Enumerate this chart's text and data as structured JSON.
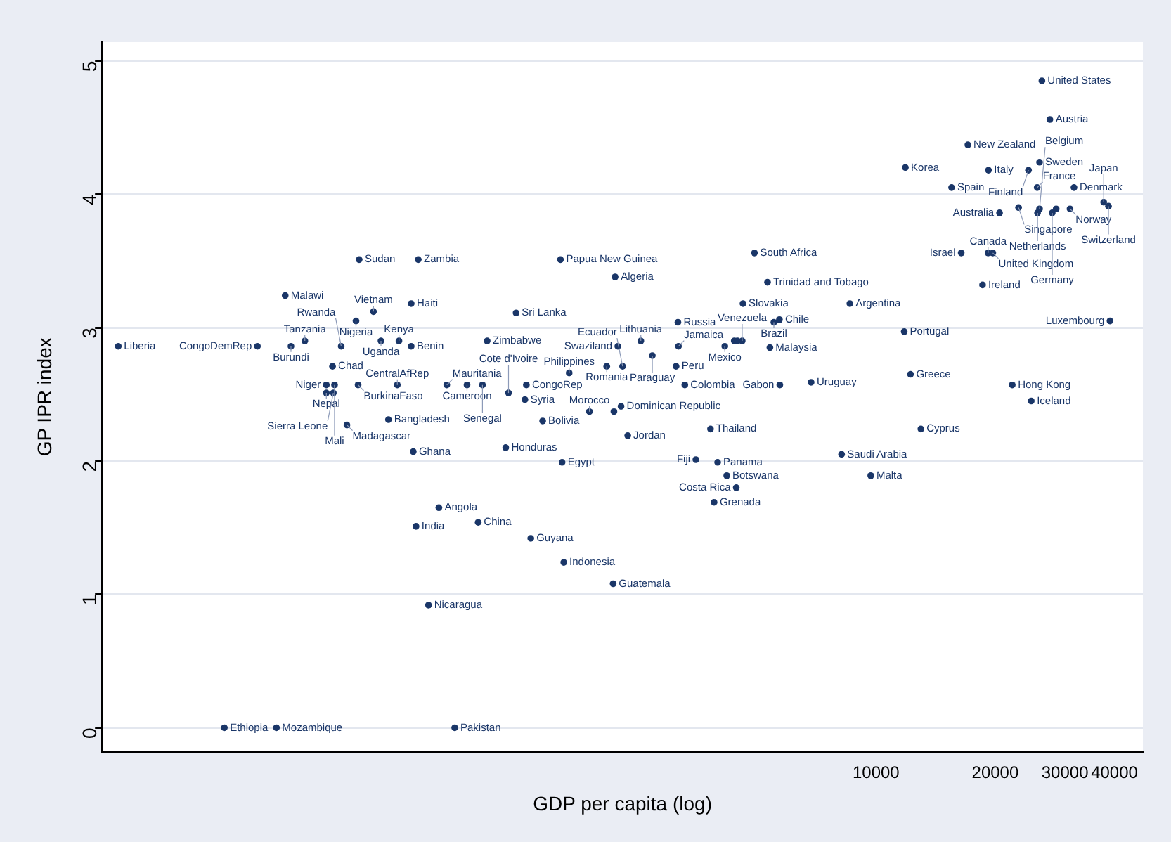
{
  "chart_data": {
    "type": "scatter",
    "xlabel": "GDP per capita (log)",
    "ylabel": "GP IPR index",
    "log": "x",
    "grid": "y",
    "marker": "circle",
    "legend": false,
    "color": "#1a3668",
    "xlim": [
      111,
      47200
    ],
    "xticks": [
      10000,
      20000,
      30000,
      40000
    ],
    "ylim": [
      -0.18,
      5.14
    ],
    "yticks": [
      0,
      1,
      2,
      3,
      4,
      5
    ],
    "x": [
      122,
      226,
      274,
      306,
      322,
      333,
      361,
      409,
      409,
      424,
      426,
      429,
      446,
      461,
      486,
      492,
      495,
      538,
      562,
      587,
      618,
      624,
      670,
      670,
      678,
      689,
      698,
      741,
      787,
      824,
      863,
      927,
      989,
      1014,
      1042,
      1161,
      1180,
      1233,
      1298,
      1309,
      1343,
      1439,
      1596,
      1611,
      1627,
      1679,
      1889,
      2089,
      2168,
      2178,
      2193,
      2228,
      2270,
      2291,
      2360,
      2547,
      2723,
      3126,
      3160,
      3170,
      3289,
      3508,
      3819,
      3899,
      3981,
      4150,
      4198,
      4436,
      4592,
      4613,
      4932,
      5321,
      5395,
      5521,
      5702,
      5715,
      6855,
      8185,
      8590,
      9700,
      11780,
      11860,
      12220,
      12980,
      15520,
      16410,
      17060,
      18580,
      19190,
      19230,
      19720,
      20510,
      22080,
      22910,
      24270,
      24660,
      25530,
      25580,
      25880,
      25880,
      26240,
      27480,
      27860,
      28510,
      30900,
      31620,
      37580,
      38640,
      38990,
      4385,
      4467
    ],
    "values": [
      2.86,
      0,
      2.86,
      0,
      3.24,
      2.86,
      2.9,
      2.57,
      2.51,
      2.71,
      2.51,
      2.57,
      2.86,
      2.27,
      3.05,
      2.57,
      3.51,
      3.12,
      2.9,
      2.31,
      2.57,
      2.9,
      3.18,
      2.86,
      2.07,
      1.51,
      3.51,
      0.92,
      1.65,
      2.57,
      0,
      2.57,
      1.54,
      2.57,
      2.9,
      2.1,
      2.51,
      3.11,
      2.46,
      2.57,
      1.42,
      2.3,
      3.51,
      1.99,
      1.24,
      2.66,
      2.37,
      2.71,
      1.08,
      2.37,
      3.38,
      2.86,
      2.41,
      2.71,
      2.19,
      2.9,
      2.79,
      2.71,
      3.04,
      2.86,
      2.57,
      2.01,
      2.24,
      1.69,
      1.99,
      2.86,
      1.89,
      1.8,
      2.9,
      3.18,
      3.56,
      3.34,
      2.85,
      3.04,
      3.06,
      2.57,
      2.59,
      2.05,
      3.18,
      1.89,
      2.97,
      4.2,
      2.65,
      2.24,
      4.05,
      3.56,
      4.37,
      3.32,
      3.56,
      4.18,
      3.56,
      3.86,
      2.57,
      3.9,
      4.18,
      2.45,
      4.05,
      3.86,
      4.24,
      3.89,
      4.85,
      4.56,
      3.86,
      3.89,
      3.89,
      4.05,
      3.94,
      3.91,
      3.05,
      2.9,
      2.9
    ],
    "value_labels": [
      "Liberia",
      "Ethiopia",
      "CongoDemRep",
      "Mozambique",
      "Malawi",
      "Burundi",
      "Tanzania",
      "Niger",
      "Nepal",
      "Chad",
      "Sierra Leone",
      "Mali",
      "Rwanda",
      "Madagascar",
      "Nigeria",
      "BurkinaFaso",
      "Sudan",
      "Vietnam",
      "Uganda",
      "Bangladesh",
      "CentralAfRep",
      "Kenya",
      "Haiti",
      "Benin",
      "Ghana",
      "India",
      "Zambia",
      "Nicaragua",
      "Angola",
      "Mauritania",
      "Pakistan",
      "Cameroon",
      "China",
      "Senegal",
      "Zimbabwe",
      "Honduras",
      "Cote d'Ivoire",
      "Sri Lanka",
      "Syria",
      "CongoRep",
      "Guyana",
      "Bolivia",
      "Papua New Guinea",
      "Egypt",
      "Indonesia",
      "Philippines",
      "Morocco",
      "Romania",
      "Guatemala",
      null,
      "Algeria",
      "Swaziland",
      "Dominican Republic",
      "Ecuador",
      "Jordan",
      "Lithuania",
      "Paraguay",
      "Peru",
      "Russia",
      "Jamaica",
      "Colombia",
      "Fiji",
      "Thailand",
      "Grenada",
      "Panama",
      "Mexico",
      "Botswana",
      "Costa Rica",
      "Venezuela",
      "Slovakia",
      "South Africa",
      "Trinidad and Tobago",
      "Malaysia",
      "Brazil",
      "Chile",
      "Gabon",
      "Uruguay",
      "Saudi Arabia",
      "Argentina",
      "Malta",
      "Portugal",
      "Korea",
      "Greece",
      "Cyprus",
      "Spain",
      "Israel",
      "New Zealand",
      "Ireland",
      "Canada",
      "Italy",
      "United Kingdom",
      "Australia",
      "Hong Kong",
      "Singapore",
      "Finland",
      "Iceland",
      "France",
      "Netherlands",
      "Sweden",
      "Belgium",
      "United States",
      "Austria",
      "Germany",
      null,
      "Norway",
      "Denmark",
      "Japan",
      "Switzerland",
      "Luxembourg",
      null,
      null
    ]
  }
}
